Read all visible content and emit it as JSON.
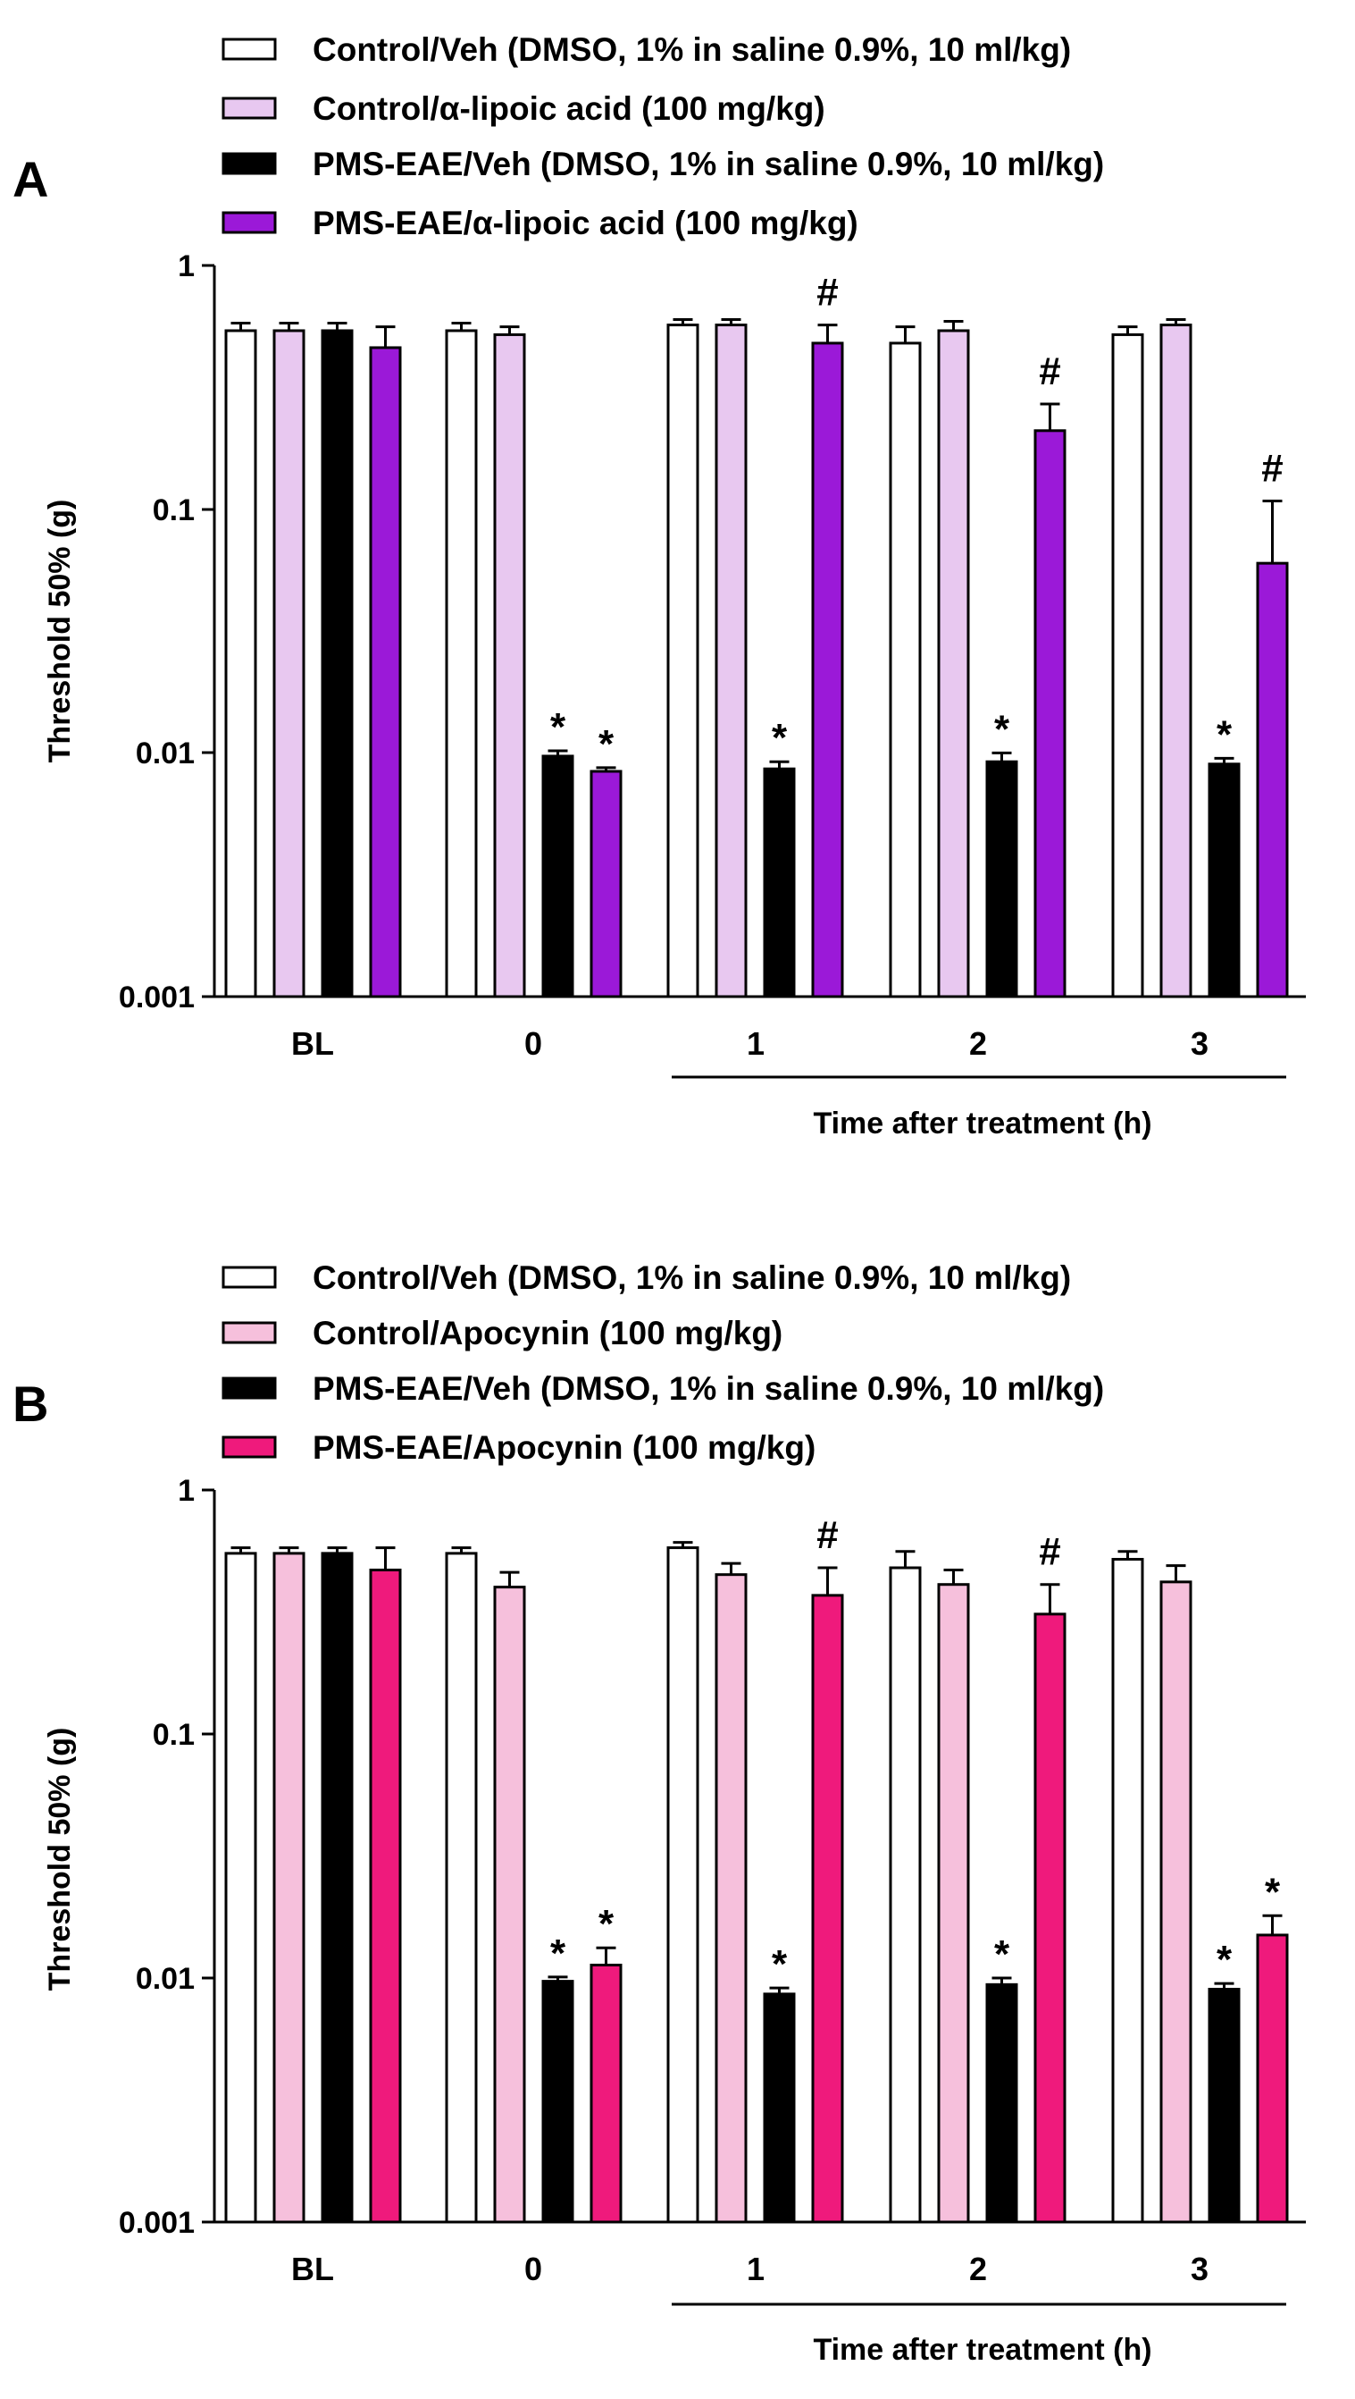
{
  "panels": [
    {
      "letter": "A",
      "legend": [
        {
          "label": "Control/Veh (DMSO, 1% in saline 0.9%, 10 ml/kg)",
          "color": "#ffffff"
        },
        {
          "label": "Control/α-lipoic acid (100 mg/kg)",
          "color": "#e8c8f0"
        },
        {
          "label": "PMS-EAE/Veh (DMSO, 1% in saline 0.9%, 10 ml/kg)",
          "color": "#000000"
        },
        {
          "label": "PMS-EAE/α-lipoic acid (100 mg/kg)",
          "color": "#9b19d8"
        }
      ],
      "chart_data": {
        "type": "bar",
        "scale": "log",
        "ylim": [
          0.001,
          1
        ],
        "yticks": [
          "0.001",
          "0.01",
          "0.1",
          "1"
        ],
        "ylabel": "Threshold 50% (g)",
        "xlabel": "Time after treatment (h)",
        "categories": [
          "BL",
          "0",
          "1",
          "2",
          "3"
        ],
        "series": [
          {
            "name": "Control/Veh (DMSO, 1% in saline 0.9%, 10 ml/kg)",
            "color": "#ffffff",
            "values": [
              0.54,
              0.54,
              0.57,
              0.48,
              0.52
            ],
            "errors": [
              0.04,
              0.04,
              0.03,
              0.08,
              0.04
            ],
            "annotations": [
              "",
              "",
              "",
              "",
              ""
            ]
          },
          {
            "name": "Control/α-lipoic acid (100 mg/kg)",
            "color": "#e8c8f0",
            "values": [
              0.54,
              0.52,
              0.57,
              0.54,
              0.57
            ],
            "errors": [
              0.04,
              0.04,
              0.03,
              0.05,
              0.03
            ],
            "annotations": [
              "",
              "",
              "",
              "",
              ""
            ]
          },
          {
            "name": "PMS-EAE/Veh (DMSO, 1% in saline 0.9%, 10 ml/kg)",
            "color": "#000000",
            "values": [
              0.54,
              0.0097,
              0.0086,
              0.0092,
              0.009
            ],
            "errors": [
              0.04,
              0.0005,
              0.0006,
              0.0008,
              0.0005
            ],
            "annotations": [
              "",
              "*",
              "*",
              "*",
              "*"
            ]
          },
          {
            "name": "PMS-EAE/α-lipoic acid (100 mg/kg)",
            "color": "#9b19d8",
            "values": [
              0.46,
              0.0084,
              0.48,
              0.21,
              0.06
            ],
            "errors": [
              0.1,
              0.0003,
              0.09,
              0.06,
              0.048
            ],
            "annotations": [
              "",
              "*",
              "#",
              "#",
              "#"
            ]
          }
        ]
      }
    },
    {
      "letter": "B",
      "legend": [
        {
          "label": "Control/Veh (DMSO, 1% in saline 0.9%, 10 ml/kg)",
          "color": "#ffffff"
        },
        {
          "label": "Control/Apocynin (100 mg/kg)",
          "color": "#f6c0dc"
        },
        {
          "label": "PMS-EAE/Veh (DMSO, 1% in saline 0.9%, 10 ml/kg)",
          "color": "#000000"
        },
        {
          "label": "PMS-EAE/Apocynin (100 mg/kg)",
          "color": "#ef1a7c"
        }
      ],
      "chart_data": {
        "type": "bar",
        "scale": "log",
        "ylim": [
          0.001,
          1
        ],
        "yticks": [
          "0.001",
          "0.01",
          "0.1",
          "1"
        ],
        "ylabel": "Threshold 50% (g)",
        "xlabel": "Time after treatment (h)",
        "categories": [
          "BL",
          "0",
          "1",
          "2",
          "3"
        ],
        "series": [
          {
            "name": "Control/Veh (DMSO, 1% in saline 0.9%, 10 ml/kg)",
            "color": "#ffffff",
            "values": [
              0.55,
              0.55,
              0.58,
              0.48,
              0.52
            ],
            "errors": [
              0.03,
              0.03,
              0.03,
              0.08,
              0.04
            ],
            "annotations": [
              "",
              "",
              "",
              "",
              ""
            ]
          },
          {
            "name": "Control/Apocynin (100 mg/kg)",
            "color": "#f6c0dc",
            "values": [
              0.55,
              0.4,
              0.45,
              0.41,
              0.42
            ],
            "errors": [
              0.03,
              0.06,
              0.05,
              0.06,
              0.07
            ],
            "annotations": [
              "",
              "",
              "",
              "",
              ""
            ]
          },
          {
            "name": "PMS-EAE/Veh (DMSO, 1% in saline 0.9%, 10 ml/kg)",
            "color": "#000000",
            "values": [
              0.55,
              0.0097,
              0.0086,
              0.0094,
              0.009
            ],
            "errors": [
              0.03,
              0.0004,
              0.0005,
              0.0006,
              0.0005
            ],
            "annotations": [
              "",
              "*",
              "*",
              "*",
              "*"
            ]
          },
          {
            "name": "PMS-EAE/Apocynin (100 mg/kg)",
            "color": "#ef1a7c",
            "values": [
              0.47,
              0.0113,
              0.37,
              0.31,
              0.015
            ],
            "errors": [
              0.11,
              0.002,
              0.11,
              0.1,
              0.003
            ],
            "annotations": [
              "",
              "*",
              "#",
              "#",
              "*"
            ]
          }
        ]
      }
    }
  ]
}
